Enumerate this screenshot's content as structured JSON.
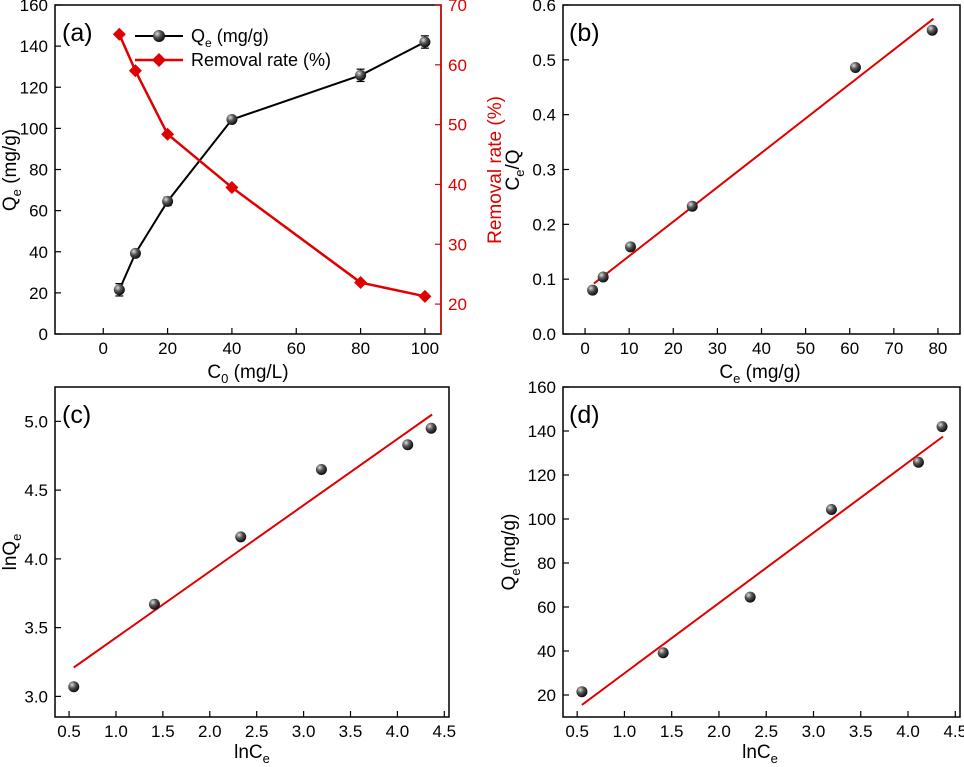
{
  "colors": {
    "black_series": "#000000",
    "red_series": "#e00000",
    "sphere_light": "#d8d8d8",
    "sphere_dark": "#111111"
  },
  "chart_data": [
    {
      "id": "a",
      "panel_label": "(a)",
      "type": "line",
      "xlabel": "C0 (mg/L)",
      "xlabel_parts": {
        "main": "C",
        "sub": "0",
        "tail": " (mg/L)"
      },
      "ylabel_parts": {
        "main": "Q",
        "sub": "e",
        "tail": " (mg/g)"
      },
      "y2label": "Removal rate (%)",
      "xlim": [
        -15,
        105
      ],
      "xticks": [
        0,
        20,
        40,
        60,
        80,
        100
      ],
      "ylim": [
        0,
        160
      ],
      "yticks": [
        0,
        20,
        40,
        60,
        80,
        100,
        120,
        140,
        160
      ],
      "y2lim": [
        15,
        70
      ],
      "y2ticks": [
        20,
        30,
        40,
        50,
        60,
        70
      ],
      "legend": {
        "position": "top-left",
        "entries": [
          {
            "main": "Q",
            "sub": "e",
            "tail": " (mg/g)",
            "marker": "sphere",
            "color": "#000000"
          },
          {
            "main": "Removal rate (%)",
            "sub": "",
            "tail": "",
            "marker": "diamond",
            "color": "#e00000"
          }
        ]
      },
      "series": [
        {
          "axis": "left",
          "marker": "sphere",
          "color": "#000000",
          "x": [
            5,
            10,
            20,
            40,
            80,
            100
          ],
          "y": [
            21.5,
            39.2,
            64.5,
            104.3,
            125.8,
            142.0
          ],
          "err": [
            3,
            1.5,
            2,
            1.5,
            3,
            3
          ]
        },
        {
          "axis": "right",
          "marker": "diamond",
          "color": "#e00000",
          "x": [
            5,
            10,
            20,
            40,
            80,
            100
          ],
          "y": [
            65.1,
            59.0,
            48.4,
            39.5,
            23.6,
            21.3
          ]
        }
      ]
    },
    {
      "id": "b",
      "panel_label": "(b)",
      "type": "scatter",
      "xlabel_parts": {
        "main": "C",
        "sub": "e",
        "tail": " (mg/g)"
      },
      "ylabel_parts": {
        "main": "C",
        "sub": "e",
        "tail": "/Q"
      },
      "xlim": [
        -5,
        85
      ],
      "xticks": [
        0,
        10,
        20,
        30,
        40,
        50,
        60,
        70,
        80
      ],
      "ylim": [
        0,
        0.6
      ],
      "yticks": [
        0,
        0.1,
        0.2,
        0.3,
        0.4,
        0.5,
        0.6
      ],
      "tick_decimals": 1,
      "points": {
        "x": [
          1.7,
          4.1,
          10.3,
          24.3,
          61.3,
          78.7
        ],
        "y": [
          0.08,
          0.104,
          0.159,
          0.233,
          0.486,
          0.554
        ]
      },
      "fit_line": {
        "x": [
          2.0,
          79.0
        ],
        "y": [
          0.092,
          0.575
        ],
        "color": "#e00000"
      }
    },
    {
      "id": "c",
      "panel_label": "(c)",
      "type": "scatter",
      "xlabel_parts": {
        "main": "lnC",
        "sub": "e",
        "tail": ""
      },
      "ylabel_parts": {
        "main": "lnQ",
        "sub": "e",
        "tail": ""
      },
      "xlim": [
        0.35,
        4.55
      ],
      "xticks": [
        0.5,
        1.0,
        1.5,
        2.0,
        2.5,
        3.0,
        3.5,
        4.0,
        4.5
      ],
      "ylim": [
        2.85,
        5.25
      ],
      "yticks": [
        3.0,
        3.5,
        4.0,
        4.5,
        5.0
      ],
      "tick_decimals": 1,
      "points": {
        "x": [
          0.55,
          1.41,
          2.33,
          3.19,
          4.11,
          4.36
        ],
        "y": [
          3.07,
          3.67,
          4.16,
          4.65,
          4.83,
          4.95
        ]
      },
      "fit_line": {
        "x": [
          0.55,
          4.37
        ],
        "y": [
          3.21,
          5.05
        ],
        "color": "#e00000"
      }
    },
    {
      "id": "d",
      "panel_label": "(d)",
      "type": "scatter",
      "xlabel_parts": {
        "main": "lnC",
        "sub": "e",
        "tail": ""
      },
      "ylabel_parts": {
        "main": "Q",
        "sub": "e",
        "tail": "(mg/g)"
      },
      "xlim": [
        0.35,
        4.55
      ],
      "xticks": [
        0.5,
        1.0,
        1.5,
        2.0,
        2.5,
        3.0,
        3.5,
        4.0,
        4.5
      ],
      "ylim": [
        10,
        160
      ],
      "yticks": [
        20,
        40,
        60,
        80,
        100,
        120,
        140,
        160
      ],
      "tick_decimals": 0,
      "points": {
        "x": [
          0.55,
          1.41,
          2.33,
          3.19,
          4.11,
          4.36
        ],
        "y": [
          21.5,
          39.2,
          64.5,
          104.3,
          125.8,
          142.0
        ]
      },
      "fit_line": {
        "x": [
          0.55,
          4.37
        ],
        "y": [
          15.5,
          137.5
        ],
        "color": "#e00000"
      }
    }
  ]
}
